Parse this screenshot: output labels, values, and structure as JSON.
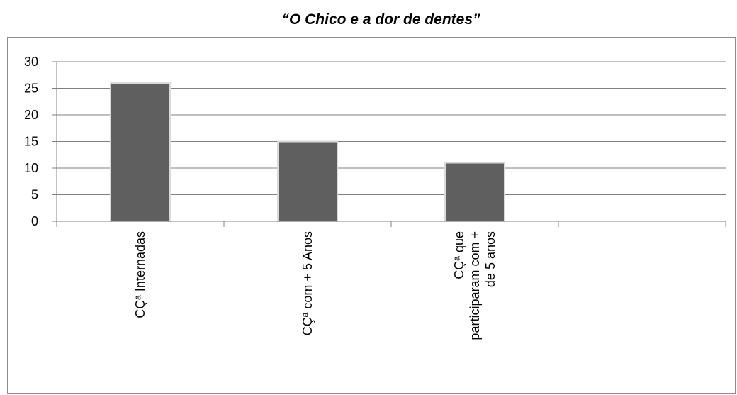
{
  "chart_data": {
    "type": "bar",
    "title": "“O Chico e a dor de dentes”",
    "categories": [
      [
        "CÇª Internadas"
      ],
      [
        "CÇª com + 5 Anos"
      ],
      [
        "CÇª que",
        "participaram com +",
        "de 5 anos"
      ],
      [
        ""
      ]
    ],
    "values": [
      26,
      15,
      11,
      null
    ],
    "ylim": [
      0,
      30
    ],
    "yticks": [
      0,
      5,
      10,
      15,
      20,
      25,
      30
    ],
    "grid": true,
    "legend": "none",
    "colors": {
      "bar": "#5f5f5f",
      "bar_edge": "#d9d9d9",
      "grid": "#808080",
      "axis": "#808080"
    }
  }
}
